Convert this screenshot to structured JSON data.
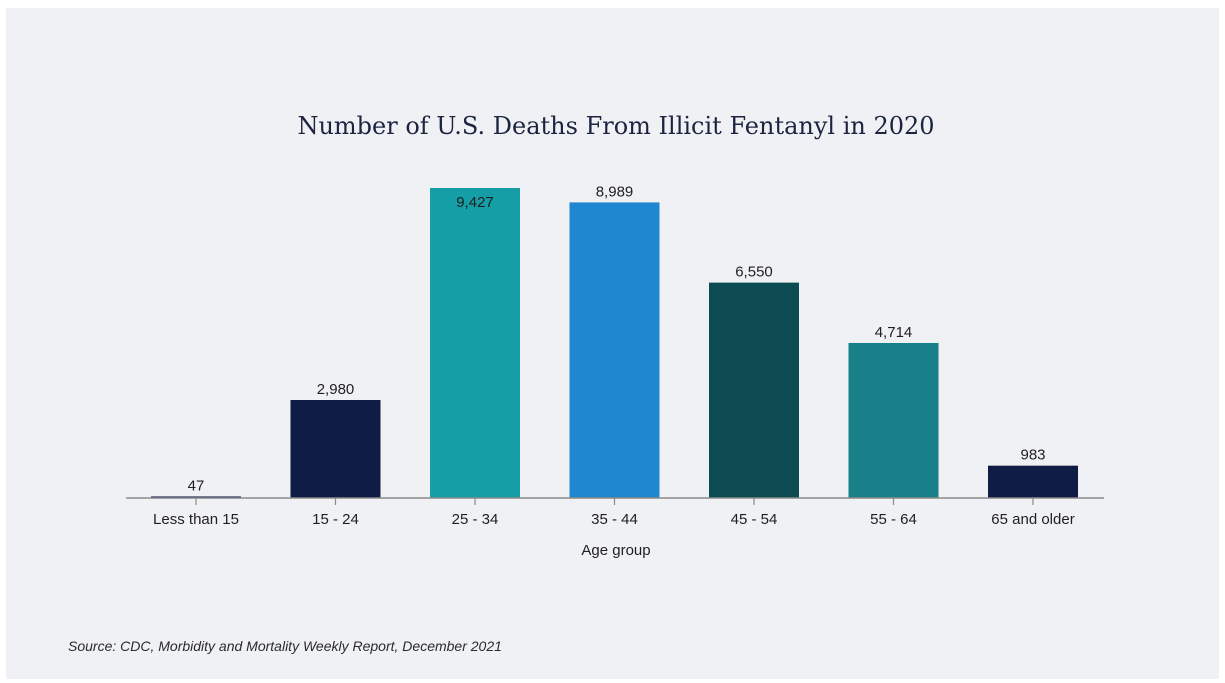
{
  "chart_data": {
    "type": "bar",
    "title": "Number of U.S. Deaths From Illicit Fentanyl in 2020",
    "xlabel": "Age group",
    "ylabel": "",
    "categories": [
      "Less than 15",
      "15 - 24",
      "25 - 34",
      "35 - 44",
      "45 - 54",
      "55 - 64",
      "65 and older"
    ],
    "values": [
      47,
      2980,
      9427,
      8989,
      6550,
      4714,
      983
    ],
    "value_labels": [
      "47",
      "2,980",
      "9,427",
      "8,989",
      "6,550",
      "4,714",
      "983"
    ],
    "colors": [
      "#0f1c46",
      "#0f1c46",
      "#159ea6",
      "#1f87cf",
      "#0c4b52",
      "#178088",
      "#0f1c46"
    ],
    "ylim": [
      0,
      9427
    ],
    "grid": false,
    "legend": "none"
  },
  "source": "Source: CDC, Morbidity and Mortality Weekly Report, December 2021"
}
